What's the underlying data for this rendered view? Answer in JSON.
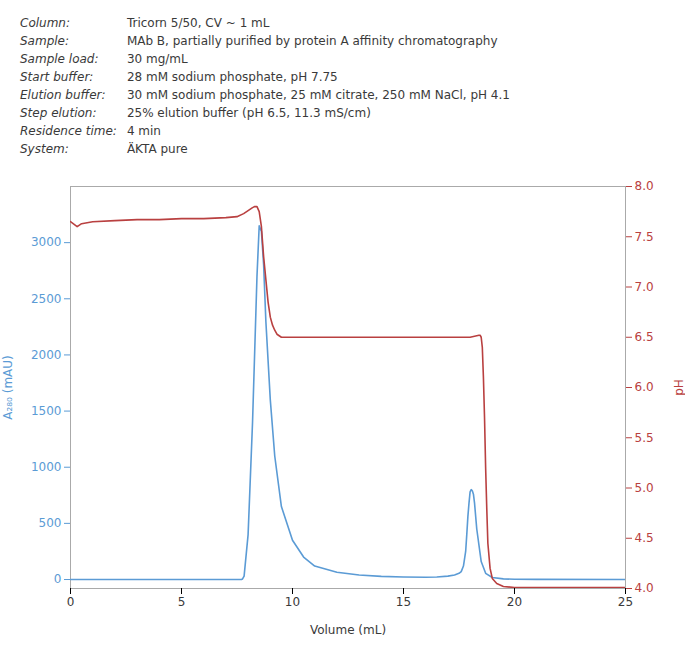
{
  "chart_data": {
    "type": "line",
    "annotations": [
      [
        "Column:",
        "Tricorn 5/50, CV ~ 1 mL"
      ],
      [
        "Sample:",
        "MAb B, partially purified by protein A affinity chromatography"
      ],
      [
        "Sample load:",
        "30 mg/mL"
      ],
      [
        "Start buffer:",
        "28 mM sodium phosphate, pH 7.75"
      ],
      [
        "Elution buffer:",
        "30 mM sodium phosphate, 25 mM citrate, 250 mM NaCl, pH 4.1"
      ],
      [
        "Step elution:",
        "25% elution buffer (pH 6.5, 11.3 mS/cm)"
      ],
      [
        "Residence time:",
        "4 min"
      ],
      [
        "System:",
        "ÄKTA pure"
      ]
    ],
    "x_label": "Volume (mL)",
    "y_label": "A₂₈₀ (mAU)",
    "y2_label": "pH",
    "xlim": [
      0,
      25
    ],
    "xticks": [
      0,
      5,
      10,
      15,
      20,
      25
    ],
    "ylim": [
      -80,
      3500
    ],
    "yticks": [
      0,
      500,
      1000,
      1500,
      2000,
      2500,
      3000
    ],
    "y2lim": [
      4.0,
      8.0
    ],
    "y2ticks": [
      {
        "value": 4.0,
        "label": "4.0"
      },
      4.5,
      {
        "value": 5.0,
        "label": "5.0"
      },
      5.5,
      {
        "value": 6.0,
        "label": "6.0"
      },
      6.5,
      {
        "value": 7.0,
        "label": "7.0"
      },
      7.5,
      {
        "value": 8.0,
        "label": "8.0"
      }
    ],
    "grid": false,
    "series": [
      {
        "color": "#5b9bd5",
        "axis": "y",
        "x": [
          0,
          7.7,
          7.75,
          7.82,
          8.0,
          8.2,
          8.4,
          8.5,
          8.6,
          8.7,
          8.8,
          9.0,
          9.2,
          9.5,
          10.0,
          10.5,
          11.0,
          12.0,
          13.0,
          14.0,
          15.0,
          16.0,
          16.5,
          17.0,
          17.3,
          17.5,
          17.6,
          17.7,
          17.8,
          17.85,
          17.9,
          17.95,
          18.0,
          18.05,
          18.1,
          18.15,
          18.2,
          18.3,
          18.5,
          18.7,
          19.0,
          19.5,
          20.0,
          21.0,
          25.0
        ],
        "values": [
          0,
          0,
          5,
          30,
          400,
          1400,
          2700,
          3150,
          3100,
          2800,
          2300,
          1600,
          1100,
          650,
          350,
          200,
          120,
          65,
          40,
          28,
          22,
          20,
          22,
          30,
          40,
          55,
          70,
          120,
          250,
          400,
          560,
          680,
          780,
          800,
          790,
          760,
          680,
          450,
          160,
          55,
          18,
          6,
          2,
          1,
          0
        ]
      },
      {
        "color": "#b94040",
        "axis": "y2",
        "x": [
          0,
          0.3,
          0.5,
          1.0,
          2.0,
          3.0,
          4.0,
          5.0,
          6.0,
          7.0,
          7.5,
          7.8,
          8.0,
          8.2,
          8.3,
          8.4,
          8.5,
          8.6,
          8.7,
          8.9,
          9.0,
          9.1,
          9.2,
          9.3,
          9.5,
          10.0,
          12.0,
          14.0,
          16.0,
          17.0,
          18.0,
          18.2,
          18.4,
          18.45,
          18.5,
          18.55,
          18.6,
          18.65,
          18.7,
          18.75,
          18.8,
          18.9,
          19.0,
          19.2,
          19.5,
          20.0,
          22.0,
          25.0
        ],
        "values": [
          7.65,
          7.6,
          7.63,
          7.65,
          7.66,
          7.67,
          7.67,
          7.68,
          7.68,
          7.69,
          7.7,
          7.73,
          7.76,
          7.79,
          7.8,
          7.8,
          7.75,
          7.6,
          7.3,
          6.85,
          6.7,
          6.62,
          6.57,
          6.53,
          6.5,
          6.5,
          6.5,
          6.5,
          6.5,
          6.5,
          6.5,
          6.51,
          6.52,
          6.52,
          6.5,
          6.4,
          6.1,
          5.7,
          5.2,
          4.8,
          4.45,
          4.2,
          4.1,
          4.05,
          4.02,
          4.01,
          4.01,
          4.01
        ]
      }
    ]
  }
}
